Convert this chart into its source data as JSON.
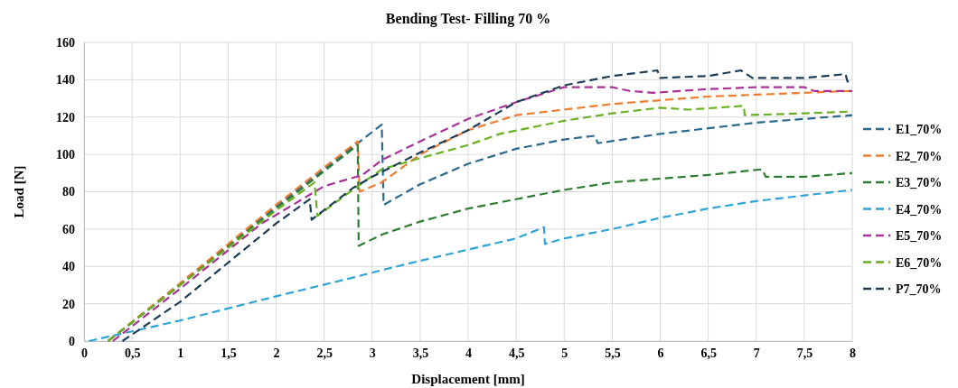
{
  "chart_data": {
    "type": "line",
    "title": "Bending Test- Filling 70 %",
    "xlabel": "Displacement [mm]",
    "ylabel": "Load [N]",
    "xlim": [
      0,
      8
    ],
    "ylim": [
      0,
      160
    ],
    "xticks": [
      0,
      {
        "value": 0.5,
        "label": "0,5"
      },
      1,
      {
        "value": 1.5,
        "label": "1,5"
      },
      2,
      {
        "value": 2.5,
        "label": "2,5"
      },
      3,
      {
        "value": 3.5,
        "label": "3,5"
      },
      4,
      {
        "value": 4.5,
        "label": "4,5"
      },
      5,
      {
        "value": 5.5,
        "label": "5,5"
      },
      6,
      {
        "value": 6.5,
        "label": "6,5"
      },
      7,
      {
        "value": 7.5,
        "label": "7,5"
      },
      8
    ],
    "yticks": [
      0,
      20,
      40,
      60,
      80,
      100,
      120,
      140,
      160
    ],
    "grid": true,
    "legend": "right",
    "marker": "none",
    "line_style": "dashed",
    "series": [
      {
        "name": "E1_70%",
        "color": "#2b6a8c",
        "x": [
          0.25,
          1,
          2,
          3.1,
          3.12,
          3.5,
          4,
          4.5,
          5,
          5.32,
          5.35,
          6,
          6.5,
          7,
          7.5,
          8
        ],
        "values": [
          0,
          30,
          72,
          116,
          73,
          84,
          95,
          103,
          108,
          110,
          106,
          111,
          114,
          117,
          119,
          121
        ]
      },
      {
        "name": "E2_70%",
        "color": "#ed7d31",
        "x": [
          0.25,
          1,
          2,
          2.85,
          2.87,
          3.1,
          3.5,
          4,
          4.5,
          5,
          5.5,
          6,
          6.5,
          7,
          7.5,
          8
        ],
        "values": [
          0,
          31,
          73,
          107,
          80,
          85,
          100,
          113,
          121,
          124,
          127,
          129,
          131,
          132,
          133,
          134
        ]
      },
      {
        "name": "E3_70%",
        "color": "#2e7d32",
        "x": [
          0.25,
          1,
          2,
          2.85,
          2.86,
          3.1,
          3.5,
          4,
          4.5,
          5,
          5.5,
          6,
          6.5,
          7.06,
          7.1,
          7.5,
          8
        ],
        "values": [
          0,
          30,
          71,
          105,
          51,
          57,
          64,
          71,
          76,
          81,
          85,
          87,
          89,
          92,
          88,
          88,
          90
        ]
      },
      {
        "name": "E4_70%",
        "color": "#2ea3d6",
        "x": [
          0.05,
          1,
          2,
          2.8,
          3.1,
          3.5,
          4,
          4.5,
          4.79,
          4.8,
          5,
          5.5,
          6,
          6.5,
          7,
          7.5,
          8
        ],
        "values": [
          0,
          11,
          24,
          34,
          38,
          43,
          49,
          55,
          61,
          52,
          55,
          60,
          66,
          71,
          75,
          78,
          81
        ]
      },
      {
        "name": "E5_70%",
        "color": "#a83297",
        "x": [
          0.3,
          1,
          1.85,
          2.5,
          2.9,
          3.1,
          3.5,
          4,
          4.5,
          5,
          5.5,
          5.68,
          5.93,
          6.5,
          7,
          7.5,
          7.6,
          8
        ],
        "values": [
          0,
          28,
          63,
          83,
          89,
          97,
          107,
          119,
          128,
          136,
          136,
          134,
          133,
          135,
          136,
          136,
          134,
          134
        ]
      },
      {
        "name": "E6_70%",
        "color": "#6ab023",
        "x": [
          0.25,
          1,
          2,
          2.4,
          2.43,
          2.85,
          3.1,
          3.5,
          4,
          4.33,
          5,
          5.5,
          6,
          6.3,
          6.87,
          6.88,
          7.5,
          8
        ],
        "values": [
          0,
          30,
          70,
          85,
          67,
          83,
          92,
          98,
          105,
          111,
          118,
          122,
          125,
          124,
          126,
          121,
          122,
          123
        ]
      },
      {
        "name": "P7_70%",
        "color": "#1d3c55",
        "x": [
          0.4,
          1,
          2,
          2.35,
          2.37,
          2.8,
          3,
          3.5,
          4,
          4.5,
          5,
          5.5,
          5.97,
          6,
          6.5,
          6.84,
          6.96,
          7.5,
          7.93,
          7.95,
          8
        ],
        "values": [
          0,
          21,
          63,
          76,
          65,
          82,
          88,
          101,
          113,
          128,
          137,
          142,
          145,
          141,
          142,
          145,
          141,
          141,
          143,
          139,
          139
        ]
      }
    ]
  }
}
